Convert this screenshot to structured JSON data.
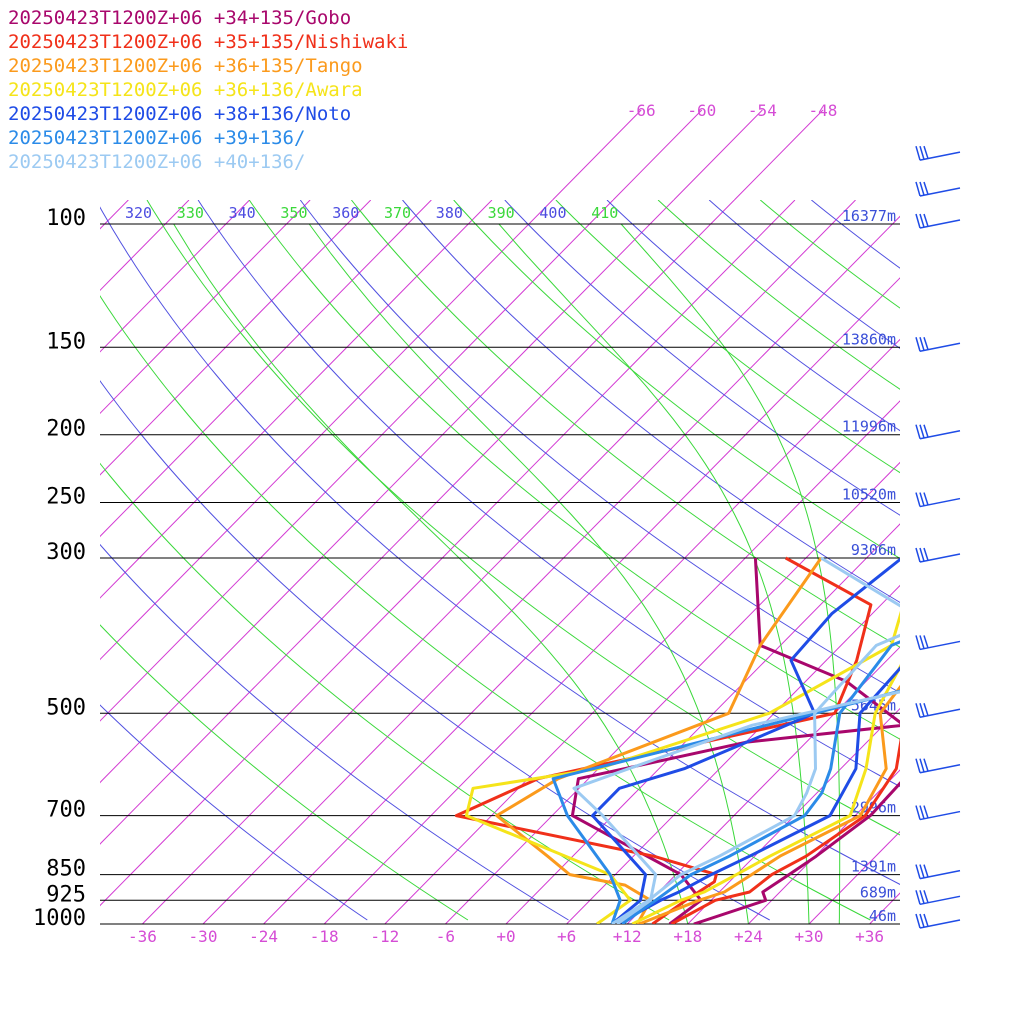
{
  "chart_data": {
    "type": "line",
    "legend": [
      {
        "text": "20250423T1200Z+06 +34+135/Gobo",
        "color": "#a8076c"
      },
      {
        "text": "20250423T1200Z+06 +35+135/Nishiwaki",
        "color": "#f0301a"
      },
      {
        "text": "20250423T1200Z+06 +36+135/Tango",
        "color": "#fb9a1c"
      },
      {
        "text": "20250423T1200Z+06 +36+136/Awara",
        "color": "#f5e41a"
      },
      {
        "text": "20250423T1200Z+06 +38+136/Noto",
        "color": "#1f4ce6"
      },
      {
        "text": "20250423T1200Z+06 +39+136/",
        "color": "#2b8be8"
      },
      {
        "text": "20250423T1200Z+06 +40+136/",
        "color": "#9ccaf2"
      }
    ],
    "pressure_levels": [
      {
        "label": "100",
        "p": 100
      },
      {
        "label": "150",
        "p": 150
      },
      {
        "label": "200",
        "p": 200
      },
      {
        "label": "250",
        "p": 250
      },
      {
        "label": "300",
        "p": 300
      },
      {
        "label": "500",
        "p": 500
      },
      {
        "label": "700",
        "p": 700
      },
      {
        "label": "850",
        "p": 850
      },
      {
        "label": "925",
        "p": 925
      },
      {
        "label": "1000",
        "p": 1000
      }
    ],
    "heights": [
      {
        "p": 100,
        "label": "16377m"
      },
      {
        "p": 150,
        "label": "13860m"
      },
      {
        "p": 200,
        "label": "11996m"
      },
      {
        "p": 250,
        "label": "10520m"
      },
      {
        "p": 300,
        "label": "9306m"
      },
      {
        "p": 500,
        "label": "5645m"
      },
      {
        "p": 700,
        "label": "2996m"
      },
      {
        "p": 850,
        "label": "1391m"
      },
      {
        "p": 925,
        "label": "689m"
      },
      {
        "p": 1000,
        "label": "46m"
      }
    ],
    "temperature_ticks": [
      "-36",
      "-30",
      "-24",
      "-18",
      "-12",
      "-6",
      "+0",
      "+6",
      "+12",
      "+18",
      "+24",
      "+30",
      "+36"
    ],
    "temperature_tick_values": [
      -36,
      -30,
      -24,
      -18,
      -12,
      -6,
      0,
      6,
      12,
      18,
      24,
      30,
      36
    ],
    "upper_temperature_ticks": [
      {
        "label": "-66",
        "value": -66
      },
      {
        "label": "-60",
        "value": -60
      },
      {
        "label": "-54",
        "value": -54
      },
      {
        "label": "-48",
        "value": -48
      }
    ],
    "theta_labels": [
      {
        "label": "320",
        "color": "#4c4ce0"
      },
      {
        "label": "330",
        "color": "#3ad83a"
      },
      {
        "label": "340",
        "color": "#4c4ce0"
      },
      {
        "label": "350",
        "color": "#3ad83a"
      },
      {
        "label": "360",
        "color": "#4c4ce0"
      },
      {
        "label": "370",
        "color": "#3ad83a"
      },
      {
        "label": "380",
        "color": "#4c4ce0"
      },
      {
        "label": "390",
        "color": "#3ad83a"
      },
      {
        "label": "400",
        "color": "#4c4ce0"
      },
      {
        "label": "410",
        "color": "#3ad83a"
      }
    ],
    "series": [
      {
        "name": "20250423T1200Z+06 +34+135/Gobo",
        "color": "#a8076c",
        "temperature": [
          [
            1000,
            18.6
          ],
          [
            925,
            23.4
          ],
          [
            900,
            22.3
          ],
          [
            850,
            23.2
          ],
          [
            800,
            24.1
          ],
          [
            700,
            25.5
          ],
          [
            600,
            25.2
          ],
          [
            500,
            22.8
          ],
          [
            400,
            26.0
          ],
          [
            300,
            33.6
          ],
          [
            250,
            42.5
          ],
          [
            200,
            49.8
          ],
          [
            150,
            56.4
          ],
          [
            125,
            60.5
          ],
          [
            100,
            66.0
          ],
          [
            80,
            72.0
          ]
        ],
        "dewpoint": [
          [
            1000,
            16.2
          ],
          [
            925,
            17.0
          ],
          [
            850,
            12.5
          ],
          [
            700,
            -4.0
          ],
          [
            620,
            -7.0
          ],
          [
            550,
            6.0
          ],
          [
            520,
            20.0
          ],
          [
            450,
            10.0
          ],
          [
            400,
            -2.0
          ],
          [
            300,
            -11.0
          ]
        ]
      },
      {
        "name": "20250423T1200Z+06 +35+135/Nishiwaki",
        "color": "#f0301a",
        "temperature": [
          [
            1000,
            16.4
          ],
          [
            925,
            18.4
          ],
          [
            900,
            21.0
          ],
          [
            850,
            21.5
          ],
          [
            800,
            23.1
          ],
          [
            700,
            25.0
          ],
          [
            600,
            23.5
          ],
          [
            500,
            19.0
          ],
          [
            430,
            19.5
          ],
          [
            350,
            23.0
          ],
          [
            300,
            30.5
          ],
          [
            250,
            41.5
          ],
          [
            200,
            50.0
          ],
          [
            150,
            57.5
          ],
          [
            100,
            64.0
          ],
          [
            80,
            71.5
          ]
        ],
        "dewpoint": [
          [
            1000,
            14.5
          ],
          [
            925,
            15.5
          ],
          [
            870,
            16.5
          ],
          [
            850,
            16.0
          ],
          [
            800,
            8.0
          ],
          [
            700,
            -15.5
          ],
          [
            620,
            -11.0
          ],
          [
            500,
            12.0
          ],
          [
            420,
            9.0
          ],
          [
            350,
            5.0
          ],
          [
            300,
            -8.0
          ]
        ]
      },
      {
        "name": "20250423T1200Z+06 +36+135/Tango",
        "color": "#fb9a1c",
        "temperature": [
          [
            1000,
            13.2
          ],
          [
            925,
            16.8
          ],
          [
            900,
            18.5
          ],
          [
            850,
            19.5
          ],
          [
            800,
            20.5
          ],
          [
            700,
            24.5
          ],
          [
            600,
            22.5
          ],
          [
            500,
            16.5
          ],
          [
            400,
            15.0
          ],
          [
            320,
            23.0
          ],
          [
            300,
            28.0
          ],
          [
            250,
            42.0
          ],
          [
            200,
            53.5
          ],
          [
            150,
            61.5
          ],
          [
            100,
            68.5
          ],
          [
            80,
            76.0
          ]
        ],
        "dewpoint": [
          [
            1000,
            13.0
          ],
          [
            925,
            12.0
          ],
          [
            880,
            8.0
          ],
          [
            850,
            1.5
          ],
          [
            800,
            -2.5
          ],
          [
            700,
            -11.5
          ],
          [
            620,
            -9.0
          ],
          [
            500,
            1.5
          ],
          [
            400,
            -2.0
          ],
          [
            300,
            -4.5
          ]
        ]
      },
      {
        "name": "20250423T1200Z+06 +36+136/Awara",
        "color": "#f5e41a",
        "temperature": [
          [
            1000,
            12.5
          ],
          [
            925,
            15.0
          ],
          [
            900,
            16.5
          ],
          [
            850,
            18.0
          ],
          [
            800,
            19.5
          ],
          [
            700,
            23.5
          ],
          [
            600,
            20.5
          ],
          [
            500,
            16.0
          ],
          [
            400,
            13.0
          ],
          [
            300,
            25.5
          ],
          [
            250,
            39.5
          ],
          [
            200,
            51.0
          ],
          [
            150,
            63.5
          ],
          [
            125,
            69.5
          ],
          [
            100,
            72.0
          ],
          [
            80,
            77.0
          ]
        ],
        "dewpoint": [
          [
            1000,
            9.0
          ],
          [
            925,
            10.0
          ],
          [
            850,
            5.5
          ],
          [
            700,
            -14.5
          ],
          [
            640,
            -16.5
          ],
          [
            600,
            -6.0
          ],
          [
            500,
            5.5
          ],
          [
            400,
            11.0
          ],
          [
            300,
            5.0
          ]
        ]
      },
      {
        "name": "20250423T1200Z+06 +38+136/Noto",
        "color": "#1f4ce6",
        "temperature": [
          [
            1000,
            11.0
          ],
          [
            925,
            13.0
          ],
          [
            900,
            14.0
          ],
          [
            850,
            15.5
          ],
          [
            800,
            17.5
          ],
          [
            700,
            21.5
          ],
          [
            600,
            19.5
          ],
          [
            500,
            14.5
          ],
          [
            420,
            14.0
          ],
          [
            360,
            16.0
          ],
          [
            300,
            23.5
          ],
          [
            250,
            33.5
          ],
          [
            200,
            47.5
          ],
          [
            150,
            61.5
          ],
          [
            135,
            69.0
          ],
          [
            100,
            74.0
          ],
          [
            80,
            79.0
          ]
        ],
        "dewpoint": [
          [
            1000,
            10.5
          ],
          [
            925,
            11.0
          ],
          [
            850,
            9.0
          ],
          [
            700,
            -2.0
          ],
          [
            640,
            -2.0
          ],
          [
            600,
            2.5
          ],
          [
            500,
            10.0
          ],
          [
            420,
            2.5
          ],
          [
            360,
            2.0
          ],
          [
            300,
            3.5
          ]
        ]
      },
      {
        "name": "20250423T1200Z+06 +39+136/",
        "color": "#2b8be8",
        "temperature": [
          [
            1000,
            11.5
          ],
          [
            925,
            12.5
          ],
          [
            850,
            13.5
          ],
          [
            800,
            15.5
          ],
          [
            700,
            19.0
          ],
          [
            650,
            18.5
          ],
          [
            600,
            17.0
          ],
          [
            500,
            12.5
          ],
          [
            400,
            11.0
          ],
          [
            300,
            23.5
          ],
          [
            250,
            32.0
          ],
          [
            200,
            46.0
          ],
          [
            150,
            62.0
          ],
          [
            125,
            69.5
          ],
          [
            100,
            76.0
          ],
          [
            80,
            82.0
          ]
        ],
        "dewpoint": [
          [
            1000,
            10.5
          ],
          [
            925,
            9.0
          ],
          [
            850,
            5.5
          ],
          [
            700,
            -4.5
          ],
          [
            620,
            -9.5
          ],
          [
            500,
            10.0
          ],
          [
            420,
            25.0
          ],
          [
            300,
            7.0
          ]
        ]
      },
      {
        "name": "20250423T1200Z+06 +40+136/",
        "color": "#9ccaf2",
        "temperature": [
          [
            1000,
            10.5
          ],
          [
            925,
            11.8
          ],
          [
            850,
            12.5
          ],
          [
            800,
            14.5
          ],
          [
            700,
            18.0
          ],
          [
            650,
            17.0
          ],
          [
            600,
            15.5
          ],
          [
            500,
            10.0
          ],
          [
            400,
            9.5
          ],
          [
            300,
            21.5
          ],
          [
            250,
            28.5
          ],
          [
            200,
            45.0
          ],
          [
            150,
            64.5
          ],
          [
            125,
            74.0
          ],
          [
            100,
            80.5
          ],
          [
            80,
            84.0
          ]
        ],
        "dewpoint": [
          [
            1000,
            11.0
          ],
          [
            925,
            12.0
          ],
          [
            850,
            10.0
          ],
          [
            700,
            -1.0
          ],
          [
            640,
            -6.5
          ],
          [
            600,
            -3.0
          ],
          [
            520,
            5.0
          ],
          [
            450,
            20.0
          ],
          [
            400,
            20.0
          ],
          [
            360,
            10.0
          ],
          [
            300,
            -4.5
          ]
        ]
      }
    ],
    "wind_barbs": [
      {
        "p": 80,
        "barbs": "1"
      },
      {
        "p": 90,
        "barbs": "2"
      },
      {
        "p": 100,
        "barbs": "3"
      },
      {
        "p": 150,
        "barbs": "4"
      },
      {
        "p": 200,
        "barbs": "4"
      },
      {
        "p": 250,
        "barbs": "5"
      },
      {
        "p": 300,
        "barbs": "6"
      },
      {
        "p": 400,
        "barbs": "7"
      },
      {
        "p": 500,
        "barbs": "8"
      },
      {
        "p": 600,
        "barbs": "9"
      },
      {
        "p": 700,
        "barbs": "10"
      },
      {
        "p": 850,
        "barbs": "11"
      },
      {
        "p": 925,
        "barbs": "12"
      },
      {
        "p": 1000,
        "barbs": "13"
      }
    ]
  }
}
